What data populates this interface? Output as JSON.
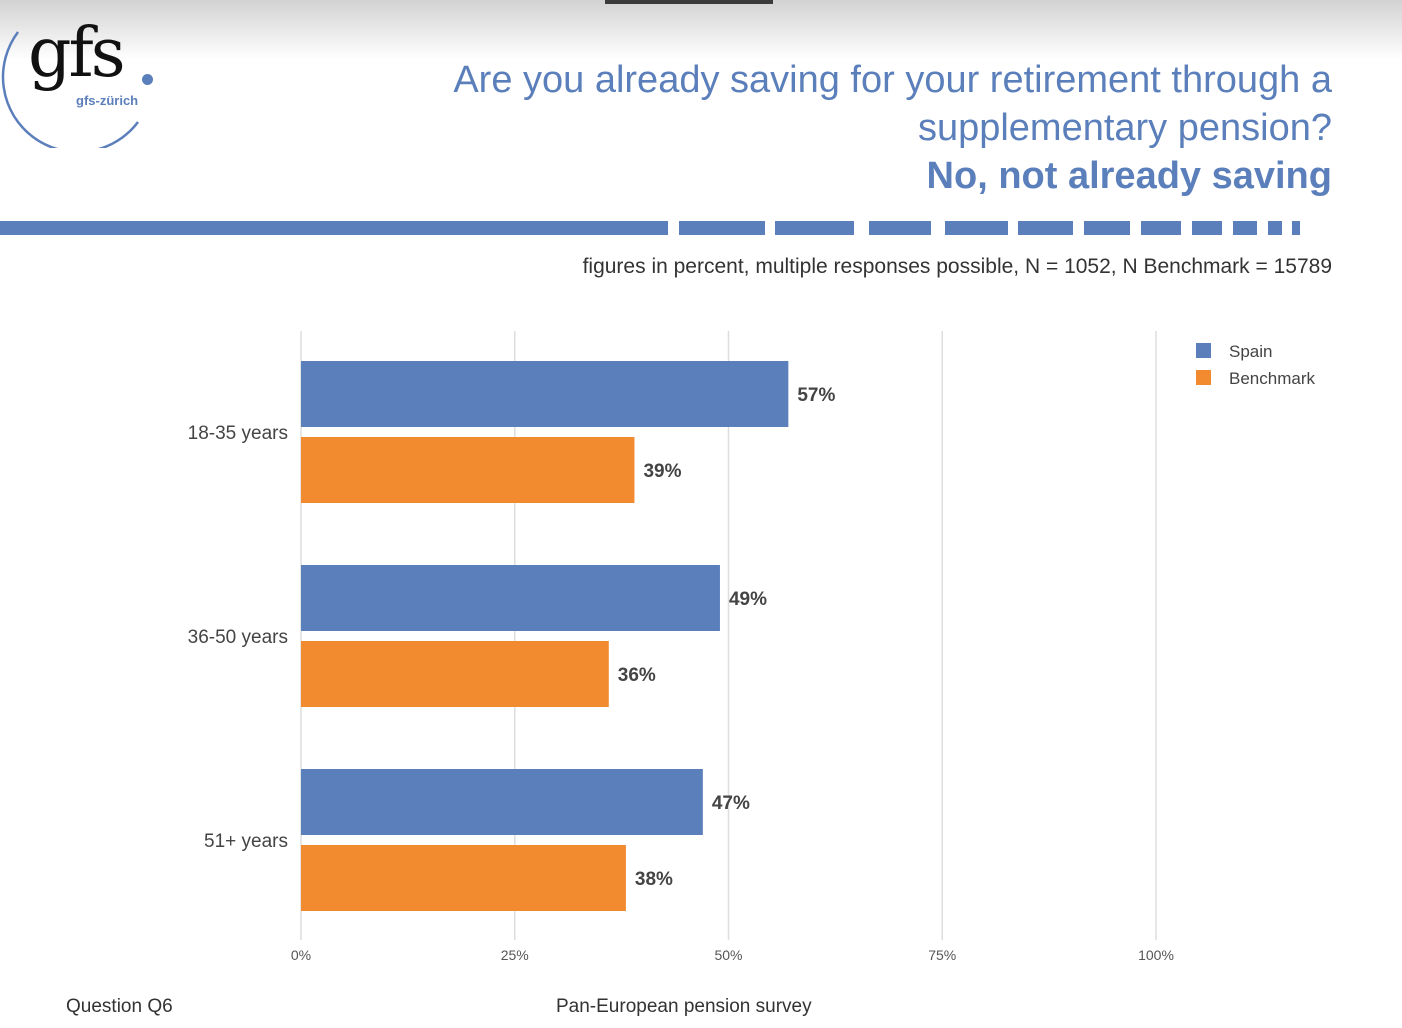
{
  "logo": {
    "main": "gfs",
    "sub": "gfs-zürich"
  },
  "header": {
    "title_line1": "Are you already saving for your retirement through a",
    "title_line2": "supplementary pension?",
    "title_line3": "No, not already saving"
  },
  "note": "figures in percent, multiple responses possible, N = 1052, N Benchmark = 15789",
  "footer": {
    "left": "Question Q6",
    "center": "Pan-European pension survey"
  },
  "colors": {
    "accent": "#5b7fbb",
    "spain": "#5b7fbb",
    "benchmark": "#f28a30"
  },
  "chart_data": {
    "type": "bar",
    "orientation": "horizontal",
    "categories": [
      "18-35 years",
      "36-50 years",
      "51+ years"
    ],
    "series": [
      {
        "name": "Spain",
        "color": "#5b7fbb",
        "values": [
          57,
          49,
          47
        ],
        "labels": [
          "57%",
          "49%",
          "47%"
        ]
      },
      {
        "name": "Benchmark",
        "color": "#f28a30",
        "values": [
          39,
          36,
          38
        ],
        "labels": [
          "39%",
          "36%",
          "38%"
        ]
      }
    ],
    "xlim": [
      0,
      100
    ],
    "xticks": [
      0,
      25,
      50,
      75,
      100
    ],
    "xtick_labels": [
      "0%",
      "25%",
      "50%",
      "75%",
      "100%"
    ],
    "grid": true,
    "legend_position": "top-right"
  }
}
